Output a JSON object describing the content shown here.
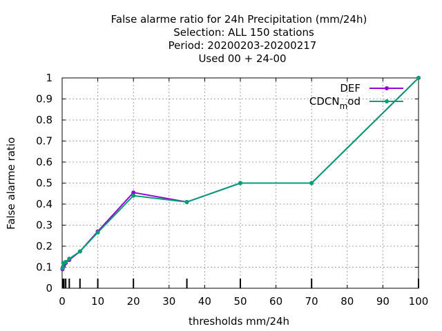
{
  "title_lines": [
    "False alarme ratio  for 24h Precipitation (mm/24h)",
    "Selection: ALL    150 stations",
    "Period: 20200203-20200217",
    "Used  00 + 24-00"
  ],
  "chart_data": {
    "type": "line",
    "title": "False alarme ratio  for 24h Precipitation (mm/24h)",
    "xlabel": "thresholds mm/24h",
    "ylabel": "False alarme ratio",
    "xlim": [
      0,
      100
    ],
    "ylim": [
      0,
      1
    ],
    "xticks": [
      0,
      10,
      20,
      30,
      40,
      50,
      60,
      70,
      80,
      90,
      100
    ],
    "yticks": [
      0,
      0.1,
      0.2,
      0.3,
      0.4,
      0.5,
      0.6,
      0.7,
      0.8,
      0.9,
      1
    ],
    "ytick_labels": [
      "0",
      "0.1",
      "0.2",
      "0.3",
      "0.4",
      "0.5",
      "0.6",
      "0.7",
      "0.8",
      "0.9",
      "1"
    ],
    "grid": true,
    "legend_position": "top-right",
    "threshold_marks": [
      0.1,
      0.2,
      0.3,
      0.5,
      1,
      2,
      5,
      10,
      20,
      35,
      50,
      70,
      100
    ],
    "series": [
      {
        "name": "DEF",
        "color": "#9400d3",
        "x": [
          0.1,
          0.2,
          0.3,
          0.5,
          1,
          2,
          5,
          10,
          20,
          35,
          50,
          70,
          100
        ],
        "y": [
          0.09,
          0.1,
          0.1,
          0.11,
          0.12,
          0.135,
          0.175,
          0.27,
          0.455,
          0.41,
          0.5,
          0.5,
          1.0
        ]
      },
      {
        "name": "CDCN_mod",
        "color": "#009e73",
        "x": [
          0.1,
          0.2,
          0.3,
          0.5,
          1,
          2,
          5,
          10,
          20,
          35,
          50,
          70,
          100
        ],
        "y": [
          0.095,
          0.1,
          0.12,
          0.12,
          0.125,
          0.14,
          0.175,
          0.265,
          0.44,
          0.41,
          0.5,
          0.5,
          1.0
        ]
      }
    ]
  },
  "legend": {
    "def_label": "DEF",
    "cdcn_label_main": "CDCN",
    "cdcn_label_sub": "m",
    "cdcn_label_tail": "od"
  }
}
